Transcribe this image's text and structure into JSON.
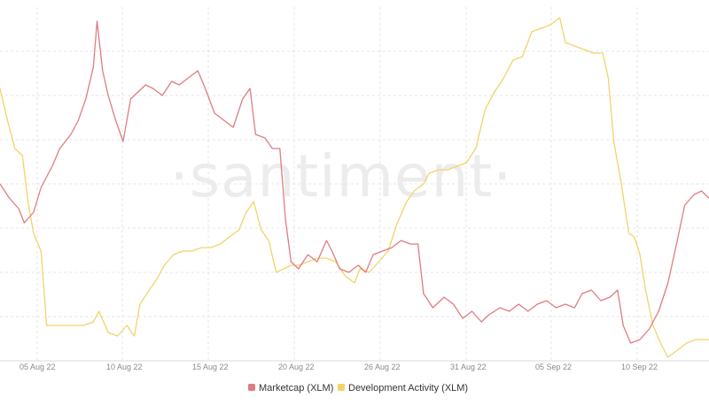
{
  "watermark": "·santiment·",
  "colors": {
    "marketcap": "#e07c80",
    "dev_activity": "#f2d36a",
    "grid": "#e6e6e6",
    "axis": "#d9d9d9"
  },
  "legend": [
    {
      "label": "Marketcap (XLM)",
      "color_key": "marketcap"
    },
    {
      "label": "Development Activity (XLM)",
      "color_key": "dev_activity"
    }
  ],
  "chart_data": {
    "type": "line",
    "x_ticks": [
      "05 Aug 22",
      "10 Aug 22",
      "15 Aug 22",
      "20 Aug 22",
      "26 Aug 22",
      "31 Aug 22",
      "05 Sep 22",
      "10 Sep 22"
    ],
    "x_range": [
      0,
      38
    ],
    "y_range": [
      0,
      100
    ],
    "grid": true,
    "legend_position": "bottom",
    "series": [
      {
        "name": "Marketcap (XLM)",
        "color_key": "marketcap",
        "points": [
          [
            0,
            50
          ],
          [
            0.5,
            46
          ],
          [
            1,
            43
          ],
          [
            1.3,
            39
          ],
          [
            1.8,
            42
          ],
          [
            2.2,
            49
          ],
          [
            2.8,
            55
          ],
          [
            3.2,
            60
          ],
          [
            3.8,
            64
          ],
          [
            4.2,
            68
          ],
          [
            4.6,
            74
          ],
          [
            5,
            83
          ],
          [
            5.2,
            96
          ],
          [
            5.5,
            82
          ],
          [
            5.8,
            75
          ],
          [
            6.2,
            68
          ],
          [
            6.6,
            62
          ],
          [
            7,
            74
          ],
          [
            7.4,
            76
          ],
          [
            7.8,
            78
          ],
          [
            8.2,
            77
          ],
          [
            8.7,
            75
          ],
          [
            9.2,
            79
          ],
          [
            9.6,
            78
          ],
          [
            10.1,
            80
          ],
          [
            10.6,
            82
          ],
          [
            11,
            77
          ],
          [
            11.5,
            70
          ],
          [
            12,
            68
          ],
          [
            12.5,
            66
          ],
          [
            13,
            74
          ],
          [
            13.4,
            77
          ],
          [
            13.7,
            64
          ],
          [
            14.2,
            63
          ],
          [
            14.6,
            60
          ],
          [
            15,
            60
          ],
          [
            15.3,
            40
          ],
          [
            15.6,
            28
          ],
          [
            16,
            26
          ],
          [
            16.5,
            30
          ],
          [
            17,
            28
          ],
          [
            17.5,
            34
          ],
          [
            17.8,
            31
          ],
          [
            18.2,
            26
          ],
          [
            18.7,
            25
          ],
          [
            19.2,
            27
          ],
          [
            19.6,
            25
          ],
          [
            20,
            30
          ],
          [
            20.5,
            31
          ],
          [
            21,
            32
          ],
          [
            21.5,
            34
          ],
          [
            22,
            33
          ],
          [
            22.4,
            33
          ],
          [
            22.7,
            19
          ],
          [
            23.2,
            15
          ],
          [
            23.8,
            18
          ],
          [
            24.3,
            16
          ],
          [
            24.8,
            12
          ],
          [
            25.3,
            14
          ],
          [
            25.8,
            11
          ],
          [
            26.2,
            13
          ],
          [
            26.8,
            15
          ],
          [
            27.3,
            14
          ],
          [
            27.8,
            16
          ],
          [
            28.3,
            14
          ],
          [
            28.8,
            16
          ],
          [
            29.3,
            17
          ],
          [
            29.8,
            15
          ],
          [
            30.3,
            16
          ],
          [
            30.8,
            15
          ],
          [
            31.2,
            19
          ],
          [
            31.7,
            20
          ],
          [
            32.2,
            17
          ],
          [
            32.7,
            18
          ],
          [
            33.1,
            20
          ],
          [
            33.4,
            10
          ],
          [
            33.8,
            5
          ],
          [
            34.3,
            6
          ],
          [
            34.8,
            9
          ],
          [
            35.3,
            14
          ],
          [
            35.8,
            22
          ],
          [
            36.3,
            34
          ],
          [
            36.7,
            44
          ],
          [
            37.2,
            47
          ],
          [
            37.6,
            48
          ],
          [
            38,
            46
          ]
        ]
      },
      {
        "name": "Development Activity (XLM)",
        "color_key": "dev_activity",
        "points": [
          [
            0,
            77
          ],
          [
            0.4,
            68
          ],
          [
            0.8,
            60
          ],
          [
            1.2,
            58
          ],
          [
            1.5,
            45
          ],
          [
            1.8,
            36
          ],
          [
            2.2,
            31
          ],
          [
            2.5,
            10
          ],
          [
            3,
            10
          ],
          [
            3.5,
            10
          ],
          [
            4,
            10
          ],
          [
            4.5,
            10
          ],
          [
            5,
            11
          ],
          [
            5.3,
            14
          ],
          [
            5.8,
            8
          ],
          [
            6.3,
            7
          ],
          [
            6.8,
            10
          ],
          [
            7.2,
            7
          ],
          [
            7.5,
            16
          ],
          [
            8,
            20
          ],
          [
            8.4,
            23
          ],
          [
            8.8,
            27
          ],
          [
            9.3,
            30
          ],
          [
            9.8,
            31
          ],
          [
            10.3,
            31
          ],
          [
            10.8,
            32
          ],
          [
            11.3,
            32
          ],
          [
            11.8,
            33
          ],
          [
            12.3,
            35
          ],
          [
            12.8,
            37
          ],
          [
            13.2,
            42
          ],
          [
            13.6,
            45
          ],
          [
            14,
            37
          ],
          [
            14.4,
            34
          ],
          [
            14.8,
            25
          ],
          [
            15.2,
            26
          ],
          [
            15.6,
            27
          ],
          [
            16,
            27
          ],
          [
            16.5,
            28
          ],
          [
            17,
            29
          ],
          [
            17.5,
            29
          ],
          [
            18,
            28
          ],
          [
            18.5,
            24
          ],
          [
            19,
            22
          ],
          [
            19.3,
            26
          ],
          [
            19.8,
            25
          ],
          [
            20.3,
            28
          ],
          [
            20.8,
            31
          ],
          [
            21.3,
            39
          ],
          [
            21.8,
            45
          ],
          [
            22.2,
            48
          ],
          [
            22.7,
            50
          ],
          [
            23,
            53
          ],
          [
            23.5,
            54
          ],
          [
            24,
            54
          ],
          [
            24.5,
            55
          ],
          [
            25,
            56
          ],
          [
            25.5,
            60
          ],
          [
            26,
            71
          ],
          [
            26.5,
            76
          ],
          [
            27,
            80
          ],
          [
            27.5,
            85
          ],
          [
            28,
            86
          ],
          [
            28.5,
            93
          ],
          [
            29,
            94
          ],
          [
            29.5,
            95
          ],
          [
            30,
            97
          ],
          [
            30.3,
            90
          ],
          [
            30.8,
            89
          ],
          [
            31.3,
            88
          ],
          [
            31.8,
            87
          ],
          [
            32.3,
            87
          ],
          [
            32.6,
            80
          ],
          [
            32.9,
            62
          ],
          [
            33.3,
            50
          ],
          [
            33.7,
            36
          ],
          [
            34,
            35
          ],
          [
            34.3,
            30
          ],
          [
            34.6,
            20
          ],
          [
            35,
            10
          ],
          [
            35.4,
            5
          ],
          [
            35.8,
            1
          ],
          [
            36.3,
            3
          ],
          [
            36.8,
            5
          ],
          [
            37.3,
            6
          ],
          [
            38,
            6
          ]
        ]
      }
    ]
  }
}
